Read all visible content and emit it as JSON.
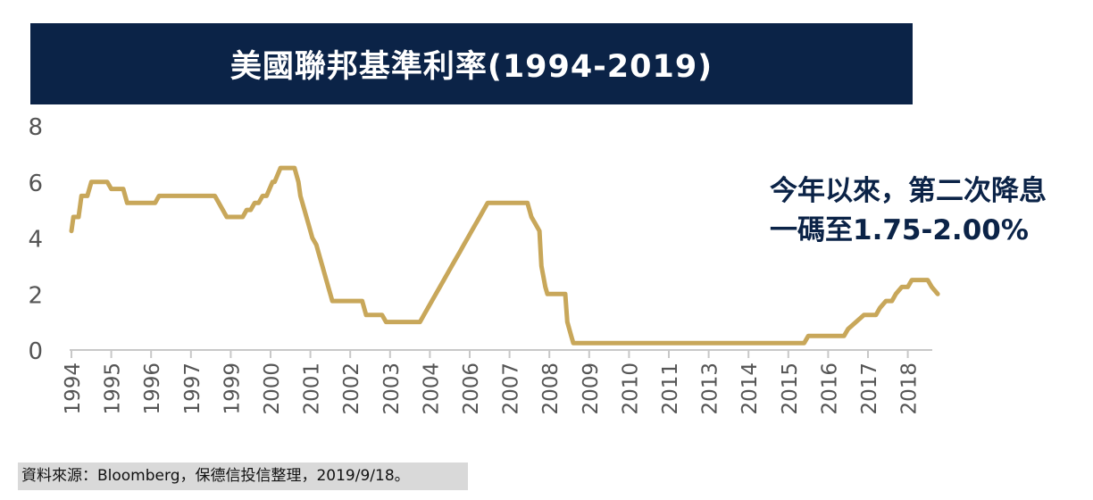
{
  "chart_data": {
    "type": "line",
    "title": "美國聯邦基準利率(1994-2019)",
    "ylim": [
      0,
      8
    ],
    "y_ticks": [
      "0",
      "2",
      "4",
      "6",
      "8"
    ],
    "x_tick_labels": [
      "1994",
      "1995",
      "1996",
      "1997",
      "1999",
      "2000",
      "2001",
      "2002",
      "2003",
      "2004",
      "2006",
      "2007",
      "2008",
      "2009",
      "2010",
      "2011",
      "2013",
      "2014",
      "2015",
      "2016",
      "2017",
      "2018"
    ],
    "grid": false,
    "line_color": "#c8a75a",
    "series": [
      {
        "values": [
          [
            0,
            4.25
          ],
          [
            0.05,
            4.75
          ],
          [
            0.18,
            4.75
          ],
          [
            0.25,
            5.5
          ],
          [
            0.4,
            5.5
          ],
          [
            0.5,
            6.0
          ],
          [
            0.9,
            6.0
          ],
          [
            1.0,
            5.75
          ],
          [
            1.3,
            5.75
          ],
          [
            1.4,
            5.25
          ],
          [
            2.1,
            5.25
          ],
          [
            2.2,
            5.5
          ],
          [
            3.6,
            5.5
          ],
          [
            3.8,
            5.0
          ],
          [
            3.9,
            4.75
          ],
          [
            4.3,
            4.75
          ],
          [
            4.4,
            5.0
          ],
          [
            4.5,
            5.0
          ],
          [
            4.6,
            5.25
          ],
          [
            4.7,
            5.25
          ],
          [
            4.8,
            5.5
          ],
          [
            4.9,
            5.5
          ],
          [
            5.05,
            6.0
          ],
          [
            5.1,
            6.0
          ],
          [
            5.25,
            6.5
          ],
          [
            5.6,
            6.5
          ],
          [
            5.7,
            6.0
          ],
          [
            5.75,
            5.5
          ],
          [
            5.85,
            5.0
          ],
          [
            5.95,
            4.5
          ],
          [
            6.05,
            4.0
          ],
          [
            6.15,
            3.75
          ],
          [
            6.2,
            3.5
          ],
          [
            6.3,
            3.0
          ],
          [
            6.4,
            2.5
          ],
          [
            6.5,
            2.0
          ],
          [
            6.55,
            1.75
          ],
          [
            7.3,
            1.75
          ],
          [
            7.4,
            1.25
          ],
          [
            7.8,
            1.25
          ],
          [
            7.9,
            1.0
          ],
          [
            8.75,
            1.0
          ],
          [
            8.85,
            1.25
          ],
          [
            8.95,
            1.5
          ],
          [
            9.05,
            1.75
          ],
          [
            9.15,
            2.0
          ],
          [
            9.25,
            2.25
          ],
          [
            9.35,
            2.5
          ],
          [
            9.45,
            2.75
          ],
          [
            9.55,
            3.0
          ],
          [
            9.65,
            3.25
          ],
          [
            9.75,
            3.5
          ],
          [
            9.85,
            3.75
          ],
          [
            9.95,
            4.0
          ],
          [
            10.05,
            4.25
          ],
          [
            10.15,
            4.5
          ],
          [
            10.25,
            4.75
          ],
          [
            10.35,
            5.0
          ],
          [
            10.45,
            5.25
          ],
          [
            11.45,
            5.25
          ],
          [
            11.55,
            4.75
          ],
          [
            11.65,
            4.5
          ],
          [
            11.75,
            4.25
          ],
          [
            11.8,
            3.0
          ],
          [
            11.9,
            2.25
          ],
          [
            11.95,
            2.0
          ],
          [
            12.4,
            2.0
          ],
          [
            12.45,
            1.0
          ],
          [
            12.55,
            0.5
          ],
          [
            12.6,
            0.25
          ],
          [
            18.4,
            0.25
          ],
          [
            18.5,
            0.5
          ],
          [
            19.4,
            0.5
          ],
          [
            19.5,
            0.75
          ],
          [
            19.7,
            1.0
          ],
          [
            19.9,
            1.25
          ],
          [
            20.2,
            1.25
          ],
          [
            20.3,
            1.5
          ],
          [
            20.45,
            1.75
          ],
          [
            20.6,
            1.75
          ],
          [
            20.7,
            2.0
          ],
          [
            20.85,
            2.25
          ],
          [
            21.0,
            2.25
          ],
          [
            21.1,
            2.5
          ],
          [
            21.5,
            2.5
          ],
          [
            21.6,
            2.25
          ],
          [
            21.75,
            2.0
          ]
        ]
      }
    ]
  },
  "annotation": {
    "line1": "今年以來，第二次降息",
    "line2": "一碼至1.75-2.00%"
  },
  "source": "資料來源：Bloomberg，保德信投信整理，2019/9/18。"
}
